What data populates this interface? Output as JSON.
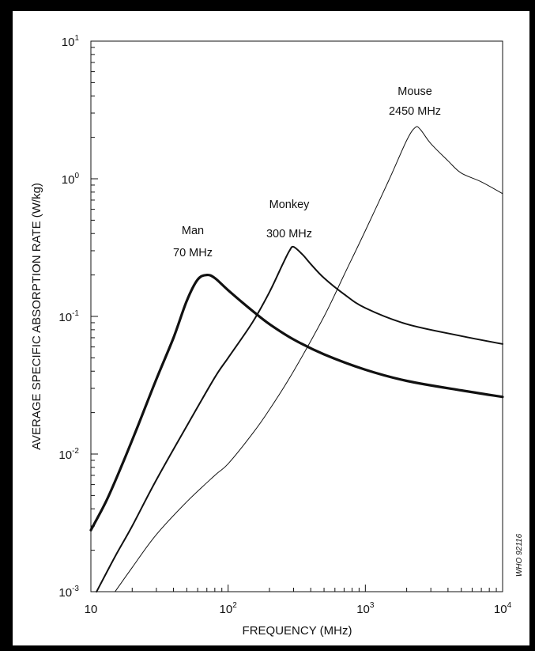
{
  "chart_data": {
    "type": "line",
    "title": "",
    "xlabel": "FREQUENCY (MHz)",
    "ylabel": "AVERAGE SPECIFIC ABSORPTION RATE (W/kg)",
    "xscale": "log",
    "yscale": "log",
    "xlim": [
      10,
      10000
    ],
    "ylim": [
      0.001,
      10
    ],
    "grid": false,
    "legend": "none",
    "x_ticks": [
      {
        "value": 10,
        "base": "10",
        "exp": ""
      },
      {
        "value": 100,
        "base": "10",
        "exp": "2"
      },
      {
        "value": 1000,
        "base": "10",
        "exp": "3"
      },
      {
        "value": 10000,
        "base": "10",
        "exp": "4"
      }
    ],
    "y_ticks": [
      {
        "value": 10,
        "base": "10",
        "exp": "1"
      },
      {
        "value": 1,
        "base": "10",
        "exp": "0"
      },
      {
        "value": 0.1,
        "base": "10",
        "exp": "-1"
      },
      {
        "value": 0.01,
        "base": "10",
        "exp": "-2"
      },
      {
        "value": 0.001,
        "base": "10",
        "exp": "-3"
      }
    ],
    "series": [
      {
        "name": "",
        "stroke": "heavy",
        "x": [
          10,
          13,
          17,
          22,
          30,
          40,
          50,
          60,
          70,
          80,
          100,
          150,
          200,
          300,
          500,
          1000,
          2000,
          5000,
          10000
        ],
        "y": [
          0.0028,
          0.0046,
          0.0085,
          0.016,
          0.035,
          0.07,
          0.13,
          0.185,
          0.2,
          0.19,
          0.155,
          0.11,
          0.088,
          0.068,
          0.053,
          0.041,
          0.034,
          0.029,
          0.026
        ]
      },
      {
        "name": "",
        "stroke": "medium",
        "x": [
          11,
          15,
          20,
          30,
          50,
          80,
          100,
          150,
          200,
          250,
          280,
          300,
          350,
          400,
          500,
          700,
          1000,
          2000,
          5000,
          10000
        ],
        "y": [
          0.001,
          0.0018,
          0.003,
          0.0065,
          0.016,
          0.036,
          0.05,
          0.09,
          0.15,
          0.24,
          0.3,
          0.32,
          0.28,
          0.24,
          0.19,
          0.145,
          0.115,
          0.088,
          0.072,
          0.063
        ]
      },
      {
        "name": "",
        "stroke": "thin",
        "x": [
          15,
          20,
          30,
          50,
          80,
          100,
          150,
          200,
          300,
          500,
          700,
          1000,
          1500,
          2000,
          2300,
          2500,
          3000,
          4000,
          5000,
          7000,
          10000
        ],
        "y": [
          0.001,
          0.0015,
          0.0026,
          0.0045,
          0.007,
          0.0085,
          0.014,
          0.021,
          0.04,
          0.1,
          0.2,
          0.42,
          1.0,
          1.9,
          2.35,
          2.3,
          1.8,
          1.35,
          1.1,
          0.95,
          0.78
        ]
      }
    ],
    "annotations": [
      {
        "lines": [
          "Man",
          "70 MHz"
        ]
      },
      {
        "lines": [
          "Monkey",
          "300 MHz"
        ]
      },
      {
        "lines": [
          "Mouse",
          "2450 MHz"
        ]
      }
    ],
    "side_note": "WHO 92116"
  },
  "colors": {
    "ink": "#111111",
    "frame": "#000000",
    "background": "#ffffff"
  }
}
